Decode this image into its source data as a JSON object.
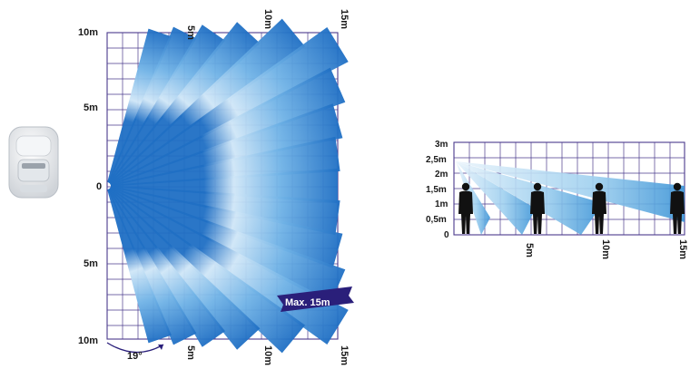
{
  "top_view": {
    "y_labels": [
      "10m",
      "5m",
      "0",
      "5m",
      "10m"
    ],
    "x_labels_top": [
      "5m",
      "10m",
      "15m"
    ],
    "x_labels_bottom": [
      "5m",
      "10m",
      "15m"
    ],
    "angle_label": "19°",
    "range_banner": "Max. 15m",
    "beam_count": 19
  },
  "side_view": {
    "height_labels": [
      "3m",
      "2,5m",
      "2m",
      "1,5m",
      "1m",
      "0,5m",
      "0"
    ],
    "x_labels": [
      "5m",
      "10m",
      "15m"
    ],
    "figure_count": 4
  },
  "colors": {
    "grid": "#4a3a8c",
    "beam_dark": "#1f6fc4",
    "beam_light": "#cfe6f7",
    "banner": "#2a1f7a",
    "figure": "#111111"
  }
}
